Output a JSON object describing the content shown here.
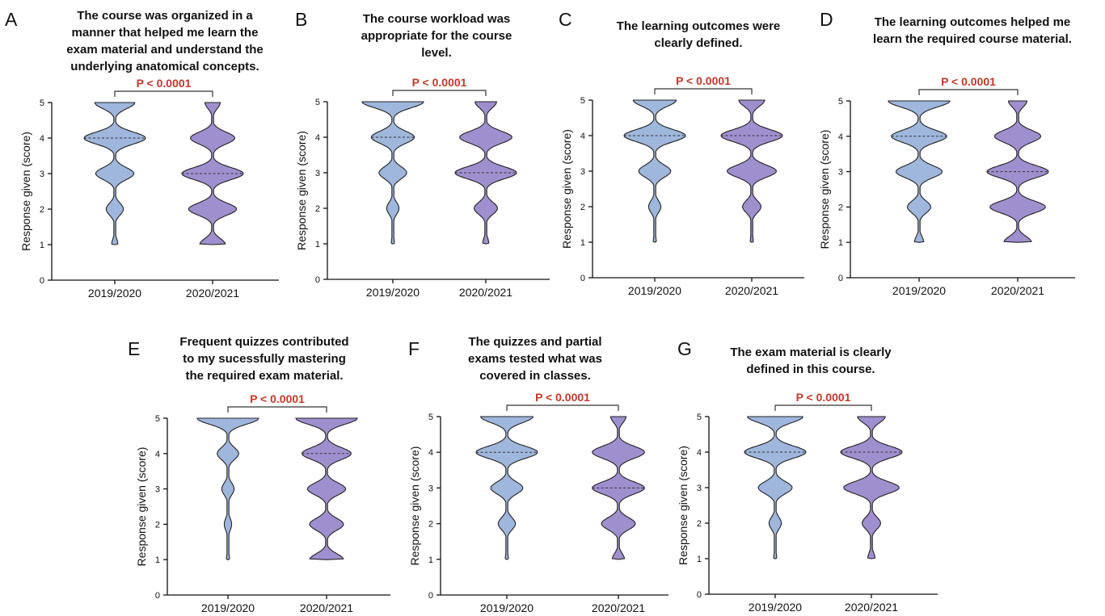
{
  "colors": {
    "group_2019": "#9fb6dd",
    "group_2020": "#a08fcf",
    "p_value": "#c0392b"
  },
  "chart_data": [
    {
      "type": "violin",
      "panel": "A",
      "title": [
        "The course was organized in a",
        "manner that helped me learn the",
        "exam material and understand the",
        "underlying anatomical concepts."
      ],
      "ylabel": "Response given (score)",
      "ylim": [
        0,
        5
      ],
      "yticks": [
        "0",
        "1",
        "2",
        "3",
        "4",
        "5"
      ],
      "categories": [
        "2019/2020",
        "2020/2021"
      ],
      "p_value": "P < 0.0001",
      "series": [
        {
          "group": "2019/2020",
          "median": 4,
          "levels": [
            1,
            2,
            3,
            4,
            5
          ],
          "density": [
            0.1,
            0.28,
            0.62,
            1.0,
            0.65
          ]
        },
        {
          "group": "2020/2021",
          "median": 3,
          "levels": [
            1,
            2,
            3,
            4,
            5
          ],
          "density": [
            0.42,
            0.78,
            1.0,
            0.72,
            0.25
          ]
        }
      ]
    },
    {
      "type": "violin",
      "panel": "B",
      "title": [
        "The course workload was",
        "appropriate for the course",
        "level."
      ],
      "ylabel": "Response given (score)",
      "ylim": [
        0,
        5
      ],
      "yticks": [
        "0",
        "1",
        "2",
        "3",
        "4",
        "5"
      ],
      "categories": [
        "2019/2020",
        "2020/2021"
      ],
      "p_value": "P < 0.0001",
      "series": [
        {
          "group": "2019/2020",
          "median": 4,
          "levels": [
            1,
            2,
            3,
            4,
            5
          ],
          "density": [
            0.05,
            0.2,
            0.45,
            0.7,
            1.0
          ]
        },
        {
          "group": "2020/2021",
          "median": 3,
          "levels": [
            1,
            2,
            3,
            4,
            5
          ],
          "density": [
            0.1,
            0.38,
            1.0,
            0.85,
            0.35
          ]
        }
      ]
    },
    {
      "type": "violin",
      "panel": "C",
      "title": [
        "The learning outcomes were",
        "clearly defined."
      ],
      "ylabel": "Response given (score)",
      "ylim": [
        0,
        5
      ],
      "yticks": [
        "0",
        "1",
        "2",
        "3",
        "4",
        "5"
      ],
      "categories": [
        "2019/2020",
        "2020/2021"
      ],
      "p_value": "P < 0.0001",
      "series": [
        {
          "group": "2019/2020",
          "median": 4,
          "levels": [
            1,
            2,
            3,
            4,
            5
          ],
          "density": [
            0.05,
            0.2,
            0.52,
            1.0,
            0.7
          ]
        },
        {
          "group": "2020/2021",
          "median": 4,
          "levels": [
            1,
            2,
            3,
            4,
            5
          ],
          "density": [
            0.05,
            0.3,
            0.8,
            1.0,
            0.42
          ]
        }
      ]
    },
    {
      "type": "violin",
      "panel": "D",
      "title": [
        "The learning outcomes helped me",
        "learn the required course material."
      ],
      "ylabel": "Response given (score)",
      "ylim": [
        0,
        5
      ],
      "yticks": [
        "0",
        "1",
        "2",
        "3",
        "4",
        "5"
      ],
      "categories": [
        "2019/2020",
        "2020/2021"
      ],
      "p_value": "P < 0.0001",
      "series": [
        {
          "group": "2019/2020",
          "median": 4,
          "levels": [
            1,
            2,
            3,
            4,
            5
          ],
          "density": [
            0.15,
            0.38,
            0.75,
            0.9,
            1.0
          ]
        },
        {
          "group": "2020/2021",
          "median": 3,
          "levels": [
            1,
            2,
            3,
            4,
            5
          ],
          "density": [
            0.45,
            0.9,
            1.0,
            0.75,
            0.3
          ]
        }
      ]
    },
    {
      "type": "violin",
      "panel": "E",
      "title": [
        "Frequent quizzes contributed",
        "to my sucessfully mastering",
        "the required exam material."
      ],
      "ylabel": "Response given (score)",
      "ylim": [
        0,
        5
      ],
      "yticks": [
        "0",
        "1",
        "2",
        "3",
        "4",
        "5"
      ],
      "categories": [
        "2019/2020",
        "2020/2021"
      ],
      "p_value": "P < 0.0001",
      "series": [
        {
          "group": "2019/2020",
          "median": 5,
          "levels": [
            1,
            2,
            3,
            4,
            5
          ],
          "density": [
            0.05,
            0.12,
            0.2,
            0.35,
            1.0
          ]
        },
        {
          "group": "2020/2021",
          "median": 4,
          "levels": [
            1,
            2,
            3,
            4,
            5
          ],
          "density": [
            0.55,
            0.55,
            0.62,
            0.8,
            1.0
          ]
        }
      ]
    },
    {
      "type": "violin",
      "panel": "F",
      "title": [
        "The quizzes and partial",
        "exams tested what was",
        "covered in classes."
      ],
      "ylabel": "Response given (score)",
      "ylim": [
        0,
        5
      ],
      "yticks": [
        "0",
        "1",
        "2",
        "3",
        "4",
        "5"
      ],
      "categories": [
        "2019/2020",
        "2020/2021"
      ],
      "p_value": "P < 0.0001",
      "series": [
        {
          "group": "2019/2020",
          "median": 4,
          "levels": [
            1,
            2,
            3,
            4,
            5
          ],
          "density": [
            0.05,
            0.28,
            0.52,
            1.0,
            0.85
          ]
        },
        {
          "group": "2020/2021",
          "median": 3,
          "levels": [
            1,
            2,
            3,
            4,
            5
          ],
          "density": [
            0.2,
            0.55,
            0.85,
            0.85,
            0.25
          ]
        }
      ]
    },
    {
      "type": "violin",
      "panel": "G",
      "title": [
        "The exam material is clearly",
        "defined in this course."
      ],
      "ylabel": "Response given (score)",
      "ylim": [
        0,
        5
      ],
      "yticks": [
        "0",
        "1",
        "2",
        "3",
        "4",
        "5"
      ],
      "categories": [
        "2019/2020",
        "2020/2021"
      ],
      "p_value": "P < 0.0001",
      "series": [
        {
          "group": "2019/2020",
          "median": 4,
          "levels": [
            1,
            2,
            3,
            4,
            5
          ],
          "density": [
            0.05,
            0.2,
            0.55,
            1.0,
            0.9
          ]
        },
        {
          "group": "2020/2021",
          "median": 4,
          "levels": [
            1,
            2,
            3,
            4,
            5
          ],
          "density": [
            0.12,
            0.3,
            0.9,
            1.0,
            0.45
          ]
        }
      ]
    }
  ]
}
